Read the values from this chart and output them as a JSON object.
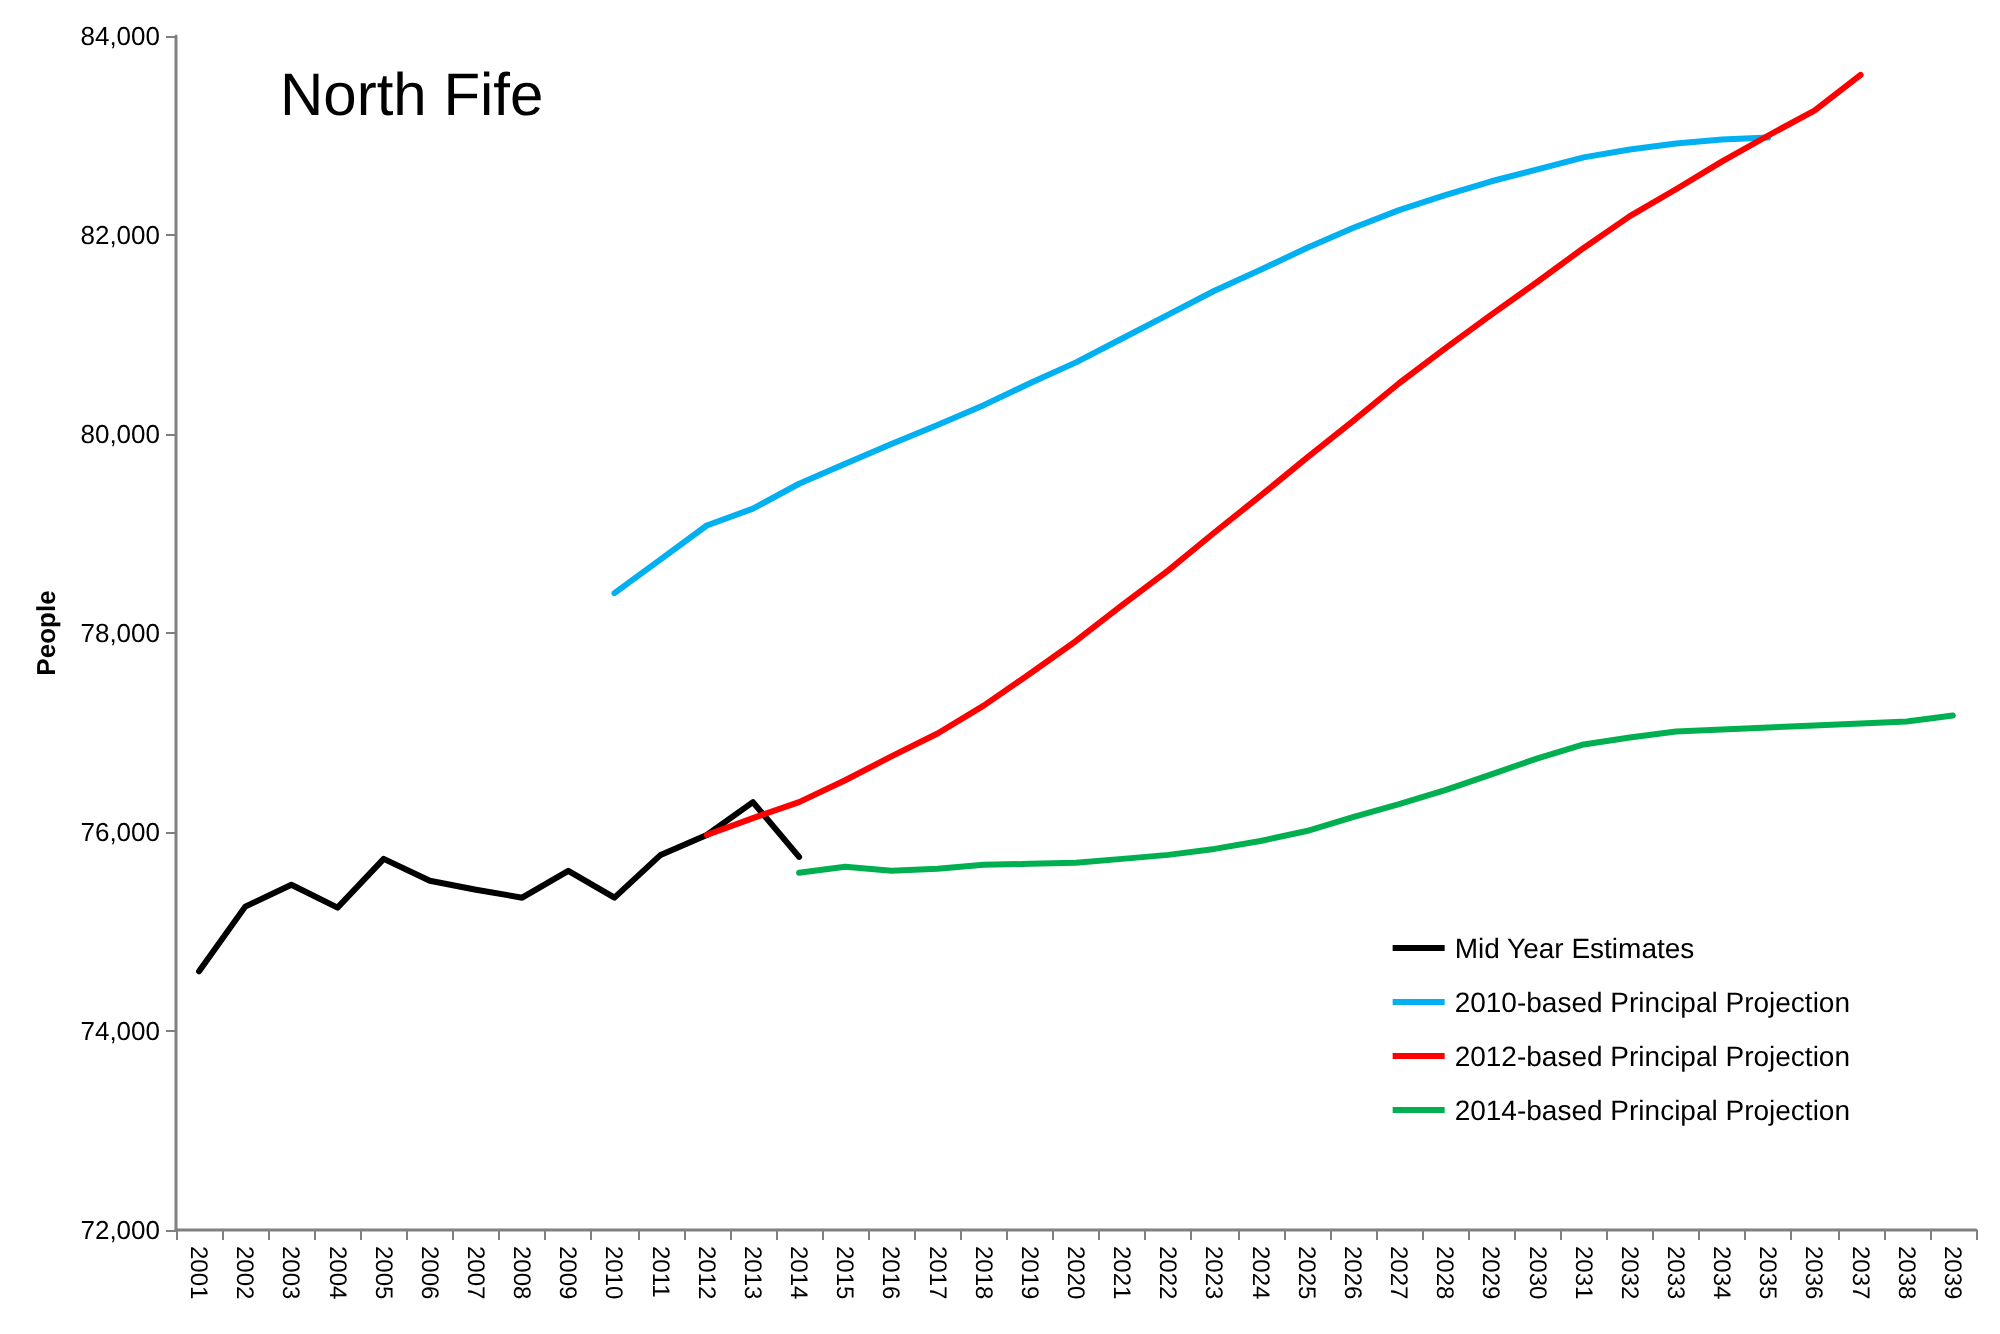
{
  "chart_data": {
    "type": "line",
    "title": "North Fife",
    "ylabel": "People",
    "categories": [
      "2001",
      "2002",
      "2003",
      "2004",
      "2005",
      "2006",
      "2007",
      "2008",
      "2009",
      "2010",
      "2011",
      "2012",
      "2013",
      "2014",
      "2015",
      "2016",
      "2017",
      "2018",
      "2019",
      "2020",
      "2021",
      "2022",
      "2023",
      "2024",
      "2025",
      "2026",
      "2027",
      "2028",
      "2029",
      "2030",
      "2031",
      "2032",
      "2033",
      "2034",
      "2035",
      "2036",
      "2037",
      "2038",
      "2039"
    ],
    "series": [
      {
        "name": "Mid Year Estimates",
        "color": "#000000",
        "values": [
          74600,
          75250,
          75470,
          75240,
          75730,
          75510,
          75420,
          75340,
          75610,
          75340,
          75770,
          75970,
          76300,
          75750,
          null,
          null,
          null,
          null,
          null,
          null,
          null,
          null,
          null,
          null,
          null,
          null,
          null,
          null,
          null,
          null,
          null,
          null,
          null,
          null,
          null,
          null,
          null,
          null,
          null
        ]
      },
      {
        "name": "2010-based Principal Projection",
        "color": "#00b0f0",
        "values": [
          null,
          null,
          null,
          null,
          null,
          null,
          null,
          null,
          null,
          78400,
          78740,
          79080,
          79250,
          79500,
          79700,
          79900,
          80090,
          80290,
          80510,
          80720,
          80960,
          81200,
          81440,
          81650,
          81870,
          82070,
          82250,
          82400,
          82540,
          82660,
          82780,
          82860,
          82920,
          82960,
          82980,
          null,
          null,
          null,
          null
        ]
      },
      {
        "name": "2012-based Principal Projection",
        "color": "#ff0000",
        "values": [
          null,
          null,
          null,
          null,
          null,
          null,
          null,
          null,
          null,
          null,
          null,
          75970,
          76140,
          76300,
          76520,
          76760,
          76990,
          77270,
          77590,
          77920,
          78280,
          78630,
          79010,
          79380,
          79760,
          80130,
          80510,
          80860,
          81200,
          81530,
          81870,
          82190,
          82460,
          82740,
          83000,
          83250,
          83610,
          null,
          null
        ]
      },
      {
        "name": "2014-based Principal Projection",
        "color": "#00b050",
        "values": [
          null,
          null,
          null,
          null,
          null,
          null,
          null,
          null,
          null,
          null,
          null,
          null,
          null,
          75590,
          75650,
          75610,
          75630,
          75670,
          75680,
          75690,
          75730,
          75770,
          75830,
          75910,
          76010,
          76150,
          76280,
          76420,
          76580,
          76740,
          76880,
          76950,
          77010,
          77030,
          77050,
          77070,
          77090,
          77110,
          77170
        ]
      }
    ],
    "ylim": [
      72000,
      84000
    ],
    "yticks": [
      {
        "value": 72000,
        "label": "72,000"
      },
      {
        "value": 74000,
        "label": "74,000"
      },
      {
        "value": 76000,
        "label": "76,000"
      },
      {
        "value": 78000,
        "label": "78,000"
      },
      {
        "value": 80000,
        "label": "80,000"
      },
      {
        "value": 82000,
        "label": "82,000"
      },
      {
        "value": 84000,
        "label": "84,000"
      }
    ],
    "grid": false,
    "legend": "bottom right",
    "marker": "none",
    "line_style": "solid"
  }
}
